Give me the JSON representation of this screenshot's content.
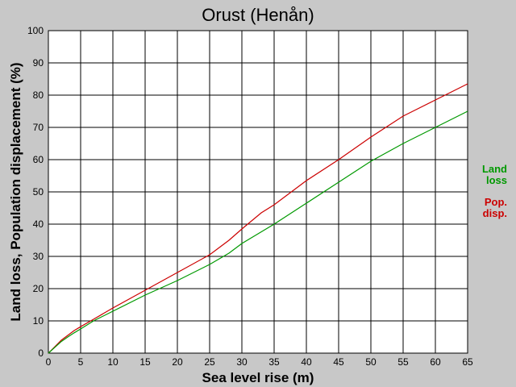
{
  "chart_data": {
    "type": "line",
    "title": "Orust (Henån)",
    "xlabel": "Sea level rise (m)",
    "ylabel": "Land loss, Population displacement (%)",
    "xlim": [
      0,
      65
    ],
    "ylim": [
      0,
      100
    ],
    "xticks": [
      "0",
      "5",
      "10",
      "15",
      "20",
      "25",
      "30",
      "35",
      "40",
      "45",
      "50",
      "55",
      "60",
      "65"
    ],
    "yticks": [
      "0",
      "10",
      "20",
      "30",
      "40",
      "50",
      "60",
      "70",
      "80",
      "90",
      "100"
    ],
    "grid": true,
    "legend_position": "right",
    "series": [
      {
        "name": "Pop. disp.",
        "legend_lines": [
          "Pop.",
          "disp."
        ],
        "color": "#cc0000",
        "points": [
          [
            0,
            0
          ],
          [
            1,
            2
          ],
          [
            2,
            4
          ],
          [
            3,
            5.5
          ],
          [
            4,
            7
          ],
          [
            5,
            8.2
          ],
          [
            7,
            10.5
          ],
          [
            10,
            14
          ],
          [
            15,
            19.5
          ],
          [
            20,
            25
          ],
          [
            25,
            30.5
          ],
          [
            28,
            35
          ],
          [
            30,
            38.5
          ],
          [
            33,
            43.5
          ],
          [
            35,
            46
          ],
          [
            40,
            53.5
          ],
          [
            45,
            60
          ],
          [
            50,
            67
          ],
          [
            55,
            73.5
          ],
          [
            60,
            78.5
          ],
          [
            65,
            83.5
          ]
        ]
      },
      {
        "name": "Land loss",
        "legend_lines": [
          "Land",
          "loss"
        ],
        "color": "#009900",
        "points": [
          [
            0,
            0
          ],
          [
            1,
            1.8
          ],
          [
            2,
            3.6
          ],
          [
            3,
            5
          ],
          [
            4,
            6.3
          ],
          [
            5,
            7.5
          ],
          [
            7,
            10
          ],
          [
            10,
            13
          ],
          [
            15,
            18
          ],
          [
            20,
            22.5
          ],
          [
            25,
            27.5
          ],
          [
            28,
            31
          ],
          [
            30,
            34
          ],
          [
            35,
            40
          ],
          [
            40,
            46.5
          ],
          [
            45,
            53
          ],
          [
            50,
            59.5
          ],
          [
            55,
            65
          ],
          [
            60,
            70
          ],
          [
            65,
            75
          ]
        ]
      }
    ]
  }
}
